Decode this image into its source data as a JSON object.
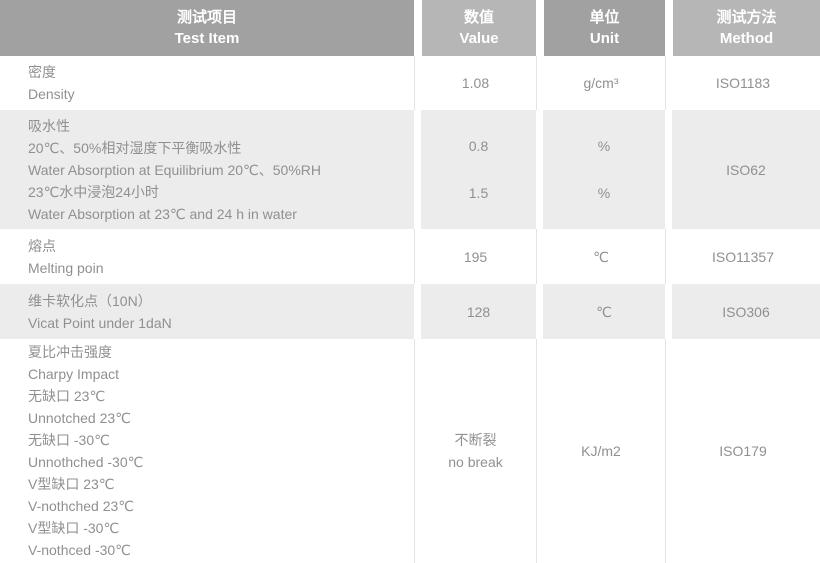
{
  "header": {
    "columns": [
      {
        "zh": "测试项目",
        "en": "Test Item"
      },
      {
        "zh": "数值",
        "en": "Value"
      },
      {
        "zh": "单位",
        "en": "Unit"
      },
      {
        "zh": "测试方法",
        "en": "Method"
      }
    ]
  },
  "rows": [
    {
      "item": [
        "密度",
        "Density"
      ],
      "values": [
        "1.08"
      ],
      "units": [
        "g/cm³"
      ],
      "method": "ISO1183"
    },
    {
      "item": [
        "吸水性",
        "20℃、50%相对湿度下平衡吸水性",
        "Water Absorption at Equilibrium 20℃、50%RH",
        "23℃水中浸泡24小时",
        "Water Absorption at 23℃ and 24 h in water"
      ],
      "values": [
        "0.8",
        "1.5"
      ],
      "units": [
        "%",
        "%"
      ],
      "method": "ISO62"
    },
    {
      "item": [
        "熔点",
        "Melting poin"
      ],
      "values": [
        "195"
      ],
      "units": [
        "℃"
      ],
      "method": "ISO11357"
    },
    {
      "item": [
        "维卡软化点（10N）",
        "Vicat Point under 1daN"
      ],
      "values": [
        "128"
      ],
      "units": [
        "℃"
      ],
      "method": "ISO306"
    },
    {
      "item": [
        "夏比冲击强度",
        "Charpy Impact",
        "无缺口 23℃",
        "Unnotched 23℃",
        "无缺口 -30℃",
        "Unnothched -30℃",
        "V型缺口 23℃",
        "V-nothched 23℃",
        "V型缺口 -30℃",
        "V-nothced -30℃"
      ],
      "values": [
        "不断裂",
        "no break"
      ],
      "units": [
        "KJ/m2"
      ],
      "method": "ISO179"
    }
  ],
  "colors": {
    "header_dark": "#a1a1a1",
    "header_light": "#b6b6b6",
    "row_stripe": "#ececec",
    "body_text": "#909090",
    "header_text": "#ffffff",
    "divider": "#e3e3e3"
  }
}
